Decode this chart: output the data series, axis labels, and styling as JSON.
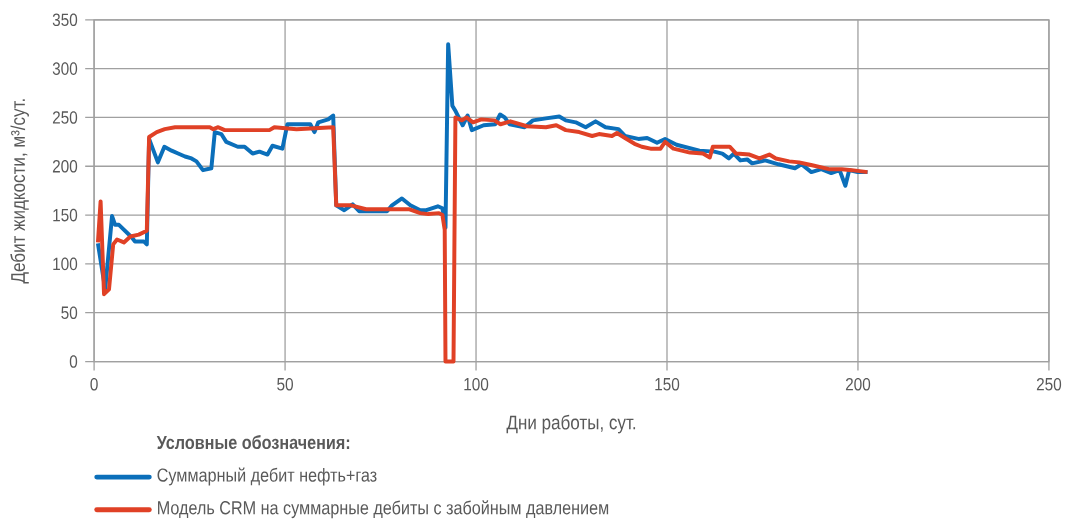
{
  "chart_data": {
    "type": "line",
    "xlabel": "Дни работы, сут.",
    "ylabel": "Дебит жидкости, м³/сут.",
    "legend_title": "Условные обозначения:",
    "xlim": [
      0,
      250
    ],
    "ylim": [
      0,
      350
    ],
    "xticks": [
      0,
      50,
      100,
      150,
      200,
      250
    ],
    "yticks": [
      0,
      50,
      100,
      150,
      200,
      250,
      300,
      350
    ],
    "grid": true,
    "legend": "bottom",
    "line_style": "solid",
    "series": [
      {
        "name": "Суммарный дебит нефть+газ",
        "color": "#0b6fba",
        "x": [
          1,
          2.9,
          4.7,
          5.5,
          6.5,
          9.9,
          10.7,
          13,
          13.8,
          14.4,
          16.7,
          18.4,
          20.3,
          22,
          23.8,
          25.5,
          26.8,
          28.5,
          30.7,
          31.6,
          33.3,
          34.6,
          37.6,
          39.4,
          41.5,
          43.3,
          45.4,
          46.7,
          49.3,
          50.6,
          56.6,
          57.7,
          58.7,
          61.3,
          62.6,
          63.4,
          65.5,
          67.7,
          69.4,
          76.7,
          78,
          80.6,
          82.8,
          85.4,
          87,
          90,
          91.2,
          92,
          92.7,
          93.8,
          94.7,
          96.5,
          97.8,
          98.9,
          102,
          105,
          106.3,
          107.5,
          108.8,
          112.7,
          114.9,
          118.3,
          121.8,
          123.5,
          126.1,
          128.7,
          131.3,
          133.9,
          137.3,
          139,
          142.5,
          144.8,
          147.4,
          149.5,
          152.5,
          158.5,
          162.4,
          164.5,
          166.2,
          167.5,
          169.2,
          171,
          172.3,
          175.7,
          179.2,
          183.5,
          185.2,
          187.8,
          190.4,
          193,
          195.2,
          196.7,
          197.7,
          199.9,
          202.5
        ],
        "values": [
          121,
          74,
          149,
          140,
          140,
          127,
          123,
          123,
          120,
          228,
          204,
          220,
          216,
          213,
          210,
          208,
          205,
          196,
          198,
          235,
          233,
          225,
          220,
          220,
          213,
          215,
          212,
          221,
          218,
          243,
          243,
          235,
          245,
          248,
          252,
          160,
          155,
          161,
          154,
          154,
          160,
          167,
          160,
          155,
          155,
          159,
          157,
          137,
          325,
          262,
          256,
          242,
          252,
          237,
          242,
          243,
          253,
          250,
          243,
          240,
          247,
          249,
          251,
          247,
          245,
          240,
          246,
          240,
          238,
          231,
          228,
          229,
          224,
          228,
          222,
          216,
          215,
          213,
          208,
          213,
          206,
          207,
          203,
          206,
          202,
          198,
          202,
          194,
          197,
          193,
          196,
          180,
          196,
          194,
          194
        ]
      },
      {
        "name": "Модель CRM на суммарные дебиты с забойным давлением",
        "color": "#e04126",
        "x": [
          1,
          1.7,
          2.6,
          3.9,
          5,
          6,
          7.8,
          9.5,
          11.7,
          13.8,
          14.4,
          16.4,
          18.5,
          21.2,
          30.3,
          31.2,
          32.5,
          34.2,
          45.9,
          47.2,
          53,
          62.6,
          63.4,
          67.3,
          71.2,
          82.4,
          85.4,
          87.5,
          90.3,
          91.2,
          91.8,
          92,
          94.1,
          94.6,
          96.3,
          97.5,
          99.2,
          101.4,
          104.8,
          106.4,
          109,
          113.3,
          118.3,
          121,
          123.5,
          127,
          130.4,
          132.2,
          135.6,
          136.9,
          139,
          141.5,
          143.4,
          145.7,
          148.3,
          149.5,
          151.7,
          156,
          159.4,
          161.2,
          162,
          166.4,
          168.1,
          171.6,
          174.2,
          176.8,
          178.5,
          182,
          184.6,
          188,
          192.4,
          195.8,
          198.4,
          202.5
        ],
        "values": [
          122,
          164,
          69,
          74,
          120,
          125,
          122,
          128,
          130,
          134,
          230,
          235,
          238,
          240,
          240,
          238,
          240,
          237,
          237,
          240,
          238,
          240,
          160,
          160,
          156,
          156,
          152,
          151,
          152,
          150,
          135,
          0,
          0,
          250,
          247,
          250,
          245,
          248,
          247,
          243,
          246,
          241,
          240,
          242,
          237,
          235,
          231,
          233,
          231,
          234,
          229,
          223,
          220,
          218,
          218,
          225,
          218,
          214,
          213,
          209,
          220,
          220,
          213,
          212,
          208,
          212,
          208,
          205,
          204,
          201,
          197,
          197,
          196,
          194
        ]
      }
    ]
  }
}
